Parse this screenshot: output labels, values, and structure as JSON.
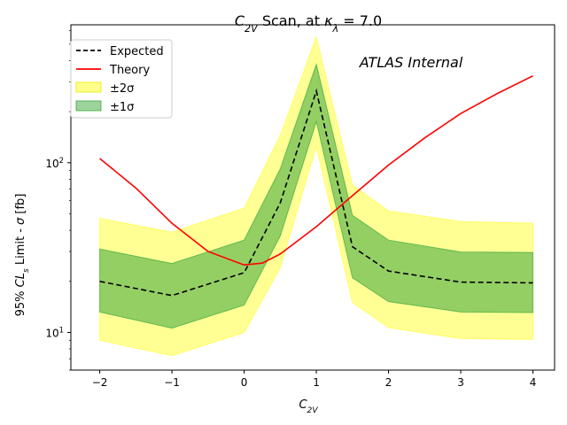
{
  "chart_data": {
    "type": "line",
    "title": "C2V Scan, at κλ = 7.0",
    "xlabel": "C2V",
    "ylabel": "95% CLs Limit - σ [fb]",
    "annotation": "ATLAS Internal",
    "x_scale": "linear",
    "y_scale": "log",
    "xlim": [
      -2.4,
      4.3
    ],
    "ylim": [
      6.0,
      650
    ],
    "x_ticks": [
      -2,
      -1,
      0,
      1,
      2,
      3,
      4
    ],
    "y_ticks": [
      10,
      100
    ],
    "y_tick_labels": [
      "10^1",
      "10^2"
    ],
    "legend_position": "top-left",
    "legend": [
      "Expected",
      "Theory",
      "±2σ",
      "±1σ"
    ],
    "x": [
      -2,
      -1,
      0,
      0.5,
      1,
      1.5,
      2,
      3,
      4
    ],
    "series": [
      {
        "name": "Expected",
        "style": "dashed",
        "color": "#000000",
        "values": [
          20.0,
          16.5,
          22.5,
          58,
          265,
          32,
          23,
          19.8,
          19.6
        ]
      },
      {
        "name": "±1σ",
        "role": "band",
        "color": "#3ca83c",
        "lower": [
          13.2,
          10.6,
          14.5,
          37,
          175,
          21,
          15.2,
          13.2,
          13.1
        ],
        "upper": [
          31,
          25.5,
          35,
          92,
          380,
          49,
          35,
          29.8,
          29.6
        ]
      },
      {
        "name": "±2σ",
        "role": "band",
        "color": "#ffff00",
        "lower": [
          9.0,
          7.3,
          10.0,
          24,
          125,
          15,
          10.7,
          9.2,
          9.1
        ],
        "upper": [
          47,
          39,
          54,
          145,
          550,
          74,
          52,
          45,
          44
        ]
      },
      {
        "name": "Theory",
        "color": "#ff0000",
        "x": [
          -2,
          -1.5,
          -1,
          -0.5,
          0,
          0.25,
          0.5,
          1,
          1.5,
          2,
          2.5,
          3,
          3.5,
          4
        ],
        "values": [
          106,
          71,
          44,
          30,
          25,
          25.6,
          29,
          42,
          64,
          97,
          140,
          195,
          255,
          325
        ]
      }
    ]
  }
}
